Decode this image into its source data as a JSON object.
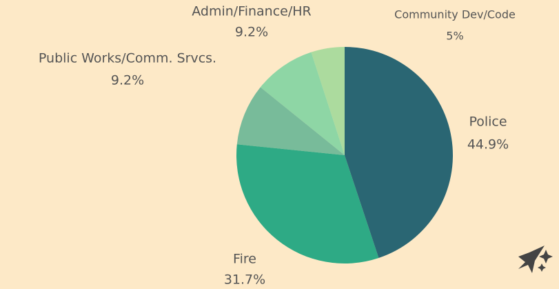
{
  "chart_data": {
    "type": "pie",
    "categories": [
      "Police",
      "Fire",
      "Public Works/Comm. Srvcs.",
      "Admin/Finance/HR",
      "Community Dev/Code"
    ],
    "values": [
      44.9,
      31.7,
      9.2,
      9.2,
      5
    ],
    "value_labels": [
      "44.9%",
      "31.7%",
      "9.2%",
      "9.2%",
      "5%"
    ],
    "colors": [
      "#2a6673",
      "#2eaa85",
      "#78bb9a",
      "#8ed6a5",
      "#acdb9e"
    ]
  }
}
